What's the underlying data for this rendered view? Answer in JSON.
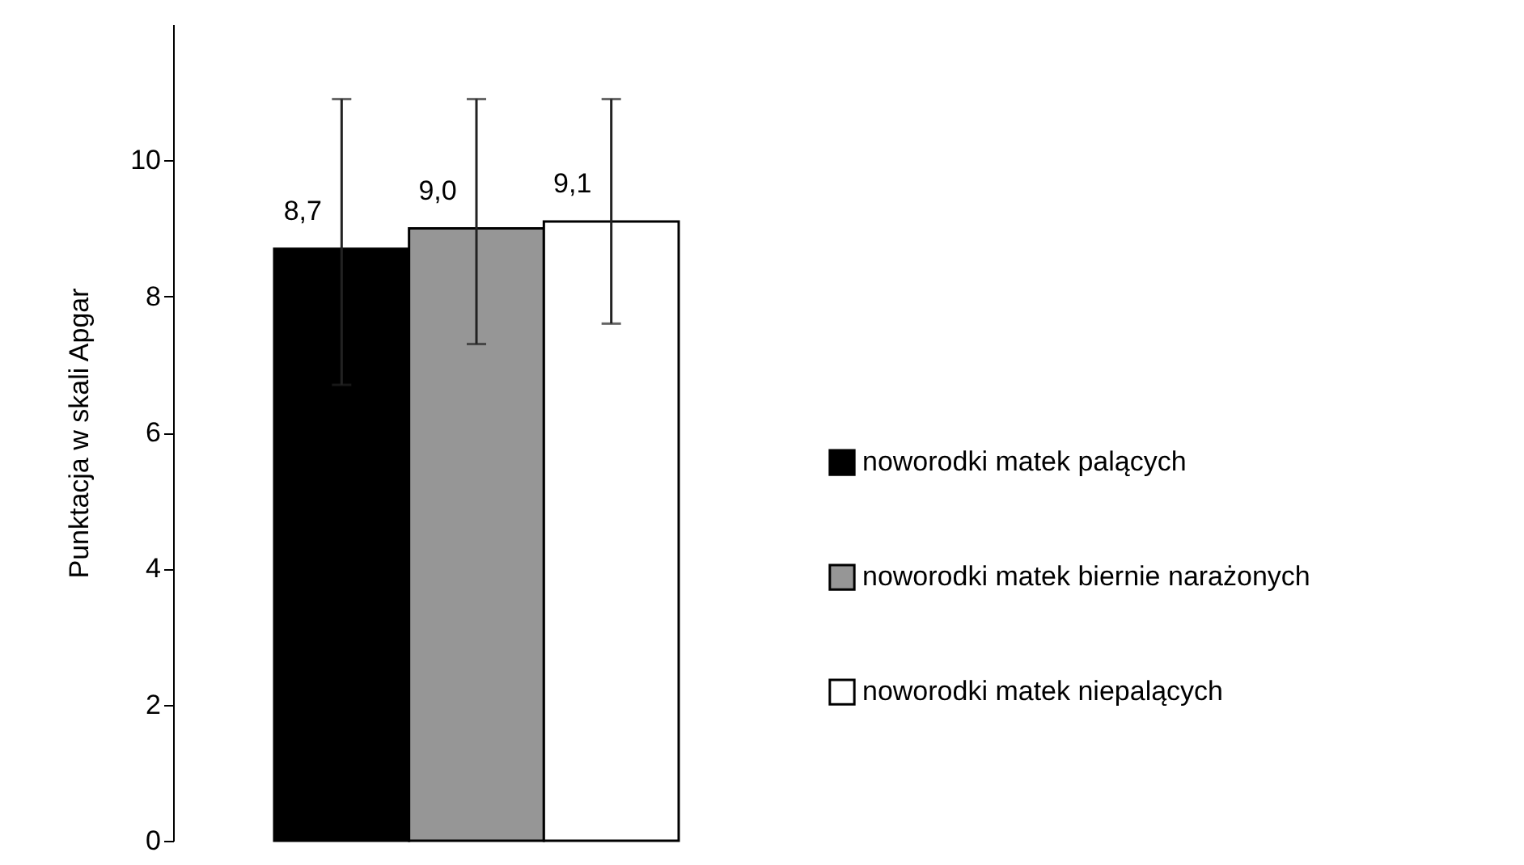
{
  "chart_data": {
    "type": "bar",
    "ylabel": "Punktacja w skali Apgar",
    "categories": [
      null
    ],
    "series": [
      {
        "name": "noworodki matek palących",
        "color": "#000000",
        "values": [
          8.7
        ],
        "errors": [
          [
            6.7,
            10.9
          ]
        ],
        "value_labels": [
          "8,7"
        ]
      },
      {
        "name": "noworodki matek biernie narażonych",
        "color": "#969696",
        "values": [
          9.0
        ],
        "errors": [
          [
            7.3,
            10.9
          ]
        ],
        "value_labels": [
          "9,0"
        ]
      },
      {
        "name": "noworodki matek niepalących",
        "color": "#ffffff",
        "values": [
          9.1
        ],
        "errors": [
          [
            7.6,
            10.9
          ]
        ],
        "value_labels": [
          "9,1"
        ]
      }
    ],
    "ylim": [
      0,
      12
    ],
    "yticks": [
      0,
      2,
      4,
      6,
      8,
      10
    ],
    "grid": false,
    "legend": "right"
  }
}
